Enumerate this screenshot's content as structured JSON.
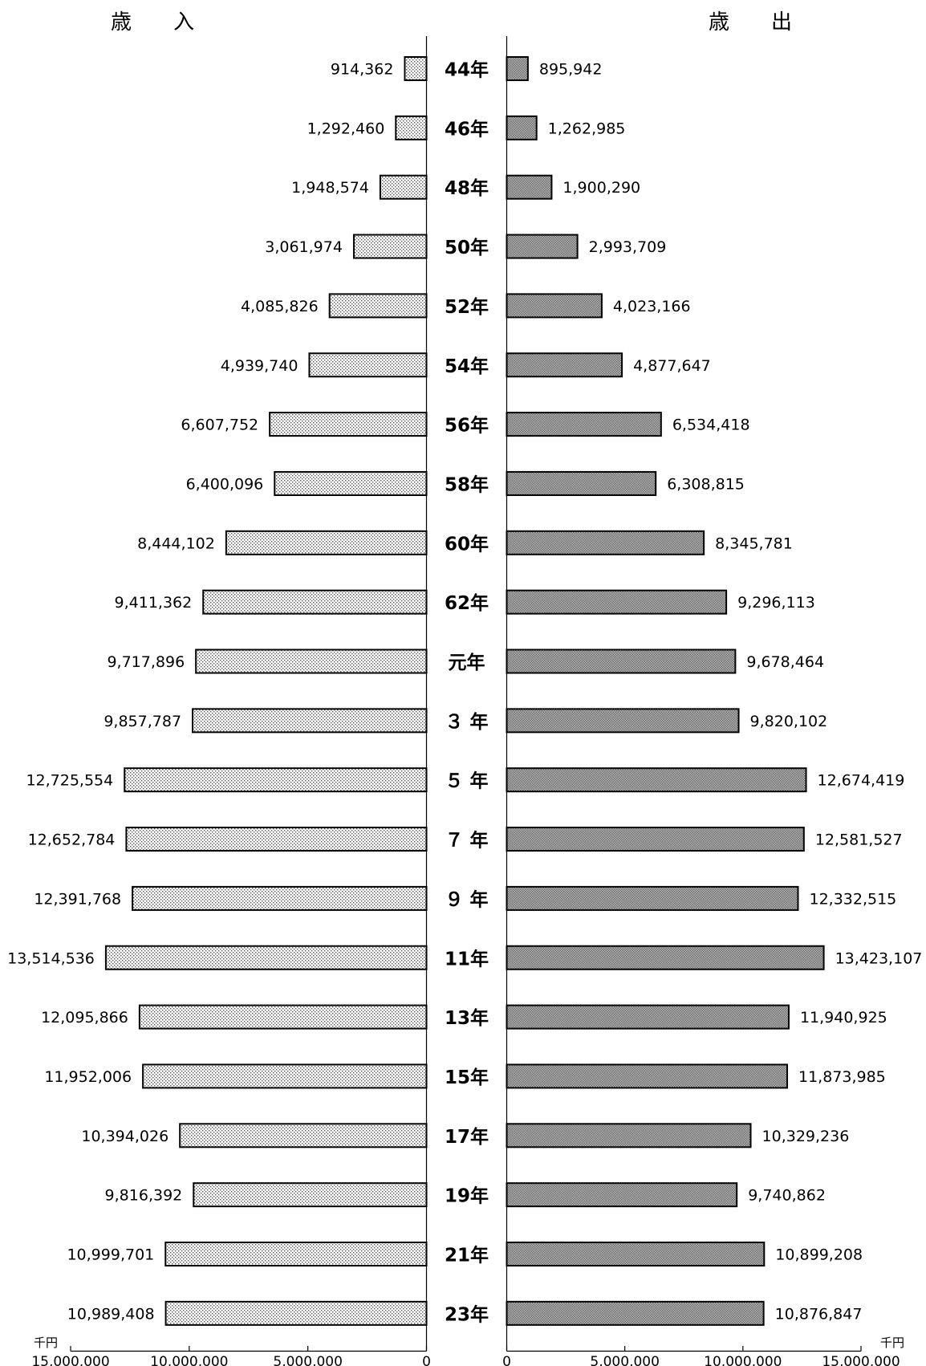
{
  "chart_data": {
    "type": "bar",
    "orientation": "horizontal-butterfly",
    "left_title": "歳　　入",
    "right_title": "歳　　出",
    "categories": [
      "44年",
      "46年",
      "48年",
      "50年",
      "52年",
      "54年",
      "56年",
      "58年",
      "60年",
      "62年",
      "元年",
      "３ 年",
      "５ 年",
      "７ 年",
      "９ 年",
      "11年",
      "13年",
      "15年",
      "17年",
      "19年",
      "21年",
      "23年"
    ],
    "series": [
      {
        "name": "歳入",
        "values": [
          914362,
          1292460,
          1948574,
          3061974,
          4085826,
          4939740,
          6607752,
          6400096,
          8444102,
          9411362,
          9717896,
          9857787,
          12725554,
          12652784,
          12391768,
          13514536,
          12095866,
          11952006,
          10394026,
          9816392,
          10999701,
          10989408
        ],
        "labels": [
          "914,362",
          "1,292,460",
          "1,948,574",
          "3,061,974",
          "4,085,826",
          "4,939,740",
          "6,607,752",
          "6,400,096",
          "8,444,102",
          "9,411,362",
          "9,717,896",
          "9,857,787",
          "12,725,554",
          "12,652,784",
          "12,391,768",
          "13,514,536",
          "12,095,866",
          "11,952,006",
          "10,394,026",
          "9,816,392",
          "10,999,701",
          "10,989,408"
        ]
      },
      {
        "name": "歳出",
        "values": [
          895942,
          1262985,
          1900290,
          2993709,
          4023166,
          4877647,
          6534418,
          6308815,
          8345781,
          9296113,
          9678464,
          9820102,
          12674419,
          12581527,
          12332515,
          13423107,
          11940925,
          11873985,
          10329236,
          9740862,
          10899208,
          10876847
        ],
        "labels": [
          "895,942",
          "1,262,985",
          "1,900,290",
          "2,993,709",
          "4,023,166",
          "4,877,647",
          "6,534,418",
          "6,308,815",
          "8,345,781",
          "9,296,113",
          "9,678,464",
          "9,820,102",
          "12,674,419",
          "12,581,527",
          "12,332,515",
          "13,423,107",
          "11,940,925",
          "11,873,985",
          "10,329,236",
          "9,740,862",
          "10,899,208",
          "10,876,847"
        ]
      }
    ],
    "xlim": [
      0,
      15000000
    ],
    "left_ticks": [
      "15,000,000",
      "10,000,000",
      "5,000,000",
      "0"
    ],
    "left_tick_values": [
      15000000,
      10000000,
      5000000,
      0
    ],
    "right_ticks": [
      "0",
      "5,000,000",
      "10,000,000",
      "15,000,000"
    ],
    "right_tick_values": [
      0,
      5000000,
      10000000,
      15000000
    ],
    "unit_label": "千円",
    "colors": {
      "axis": "#000000",
      "bar_stroke": "#000000",
      "left_bar_fill": "#ffffff",
      "left_bar_dots": "#555555",
      "right_bar_fill": "#b5b5b5",
      "right_bar_hatch": "#6d6d6d"
    },
    "grid": false
  }
}
